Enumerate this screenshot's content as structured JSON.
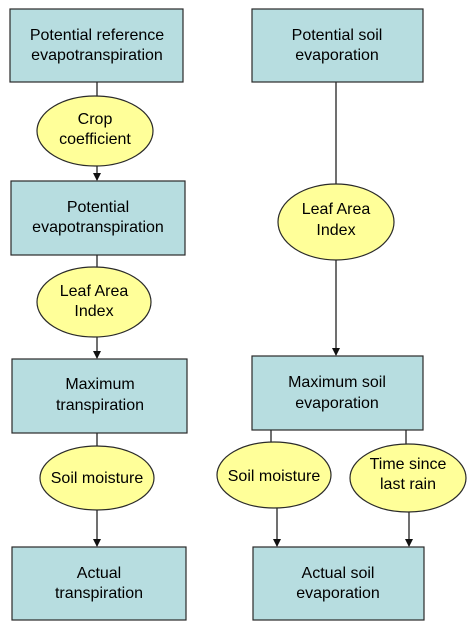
{
  "nodes": {
    "potential_reference_et": {
      "line1": "Potential reference",
      "line2": "evapotranspiration"
    },
    "crop_coefficient": {
      "line1": "Crop",
      "line2": "coefficient"
    },
    "potential_et": {
      "line1": "Potential",
      "line2": "evapotranspiration"
    },
    "leaf_area_index_left": {
      "line1": "Leaf Area",
      "line2": "Index"
    },
    "maximum_transpiration": {
      "line1": "Maximum",
      "line2": "transpiration"
    },
    "soil_moisture_left": {
      "line1": "Soil moisture"
    },
    "actual_transpiration": {
      "line1": "Actual",
      "line2": "transpiration"
    },
    "potential_soil_evaporation": {
      "line1": "Potential soil",
      "line2": "evaporation"
    },
    "leaf_area_index_right": {
      "line1": "Leaf Area",
      "line2": "Index"
    },
    "maximum_soil_evaporation": {
      "line1": "Maximum soil",
      "line2": "evaporation"
    },
    "soil_moisture_right": {
      "line1": "Soil moisture"
    },
    "time_since_last_rain": {
      "line1": "Time since",
      "line2": "last rain"
    },
    "actual_soil_evaporation": {
      "line1": "Actual soil",
      "line2": "evaporation"
    }
  },
  "colors": {
    "box_fill": "#b7dde0",
    "ellipse_fill": "#ffff99",
    "stroke": "#2a2a2a"
  }
}
